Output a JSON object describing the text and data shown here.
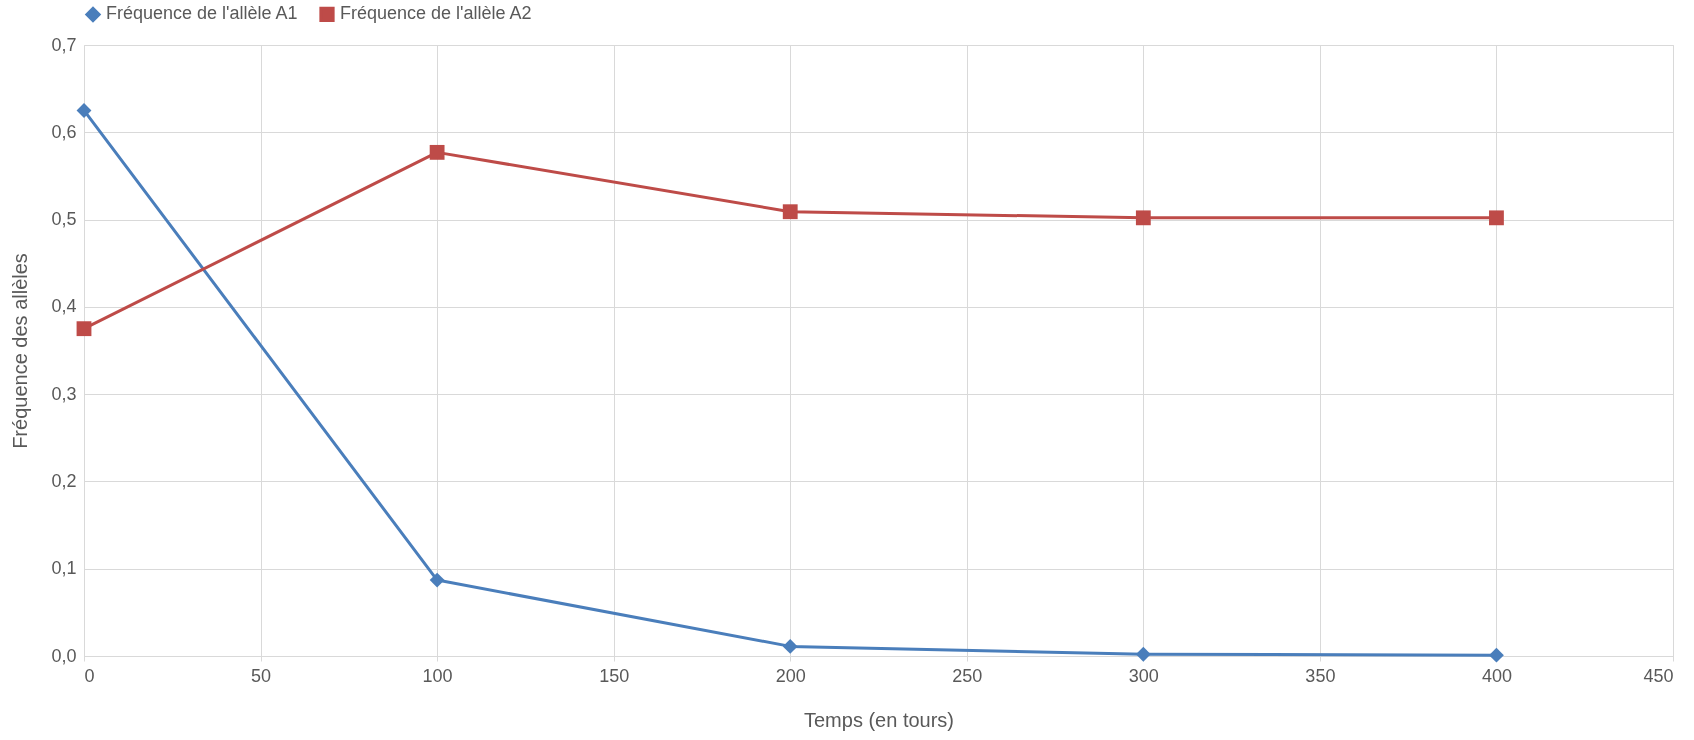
{
  "chart_data": {
    "type": "line",
    "xlabel": "Temps (en tours)",
    "ylabel": "Fréquence des allèles",
    "x": [
      0,
      100,
      200,
      300,
      400
    ],
    "series": [
      {
        "name": "Fréquence de  l'allèle A1",
        "color": "#4a7ebb",
        "marker": "diamond",
        "values": [
          0.625,
          0.087,
          0.011,
          0.002,
          0.001
        ]
      },
      {
        "name": "Fréquence de  l'allèle A2",
        "color": "#be4b48",
        "marker": "square",
        "values": [
          0.375,
          0.577,
          0.509,
          0.502,
          0.502
        ]
      }
    ],
    "xlim": [
      0,
      450
    ],
    "xticks": [
      0,
      50,
      100,
      150,
      200,
      250,
      300,
      350,
      400,
      450
    ],
    "ylim": [
      0,
      0.7
    ],
    "yticks": [
      {
        "value": 0,
        "label": "0,0"
      },
      {
        "value": 0.1,
        "label": "0,1"
      },
      {
        "value": 0.2,
        "label": "0,2"
      },
      {
        "value": 0.3,
        "label": "0,3"
      },
      {
        "value": 0.4,
        "label": "0,4"
      },
      {
        "value": 0.5,
        "label": "0,5"
      },
      {
        "value": 0.6,
        "label": "0,6"
      },
      {
        "value": 0.7,
        "label": "0,7"
      }
    ],
    "grid": true,
    "legend": "top",
    "line_style": "solid"
  }
}
